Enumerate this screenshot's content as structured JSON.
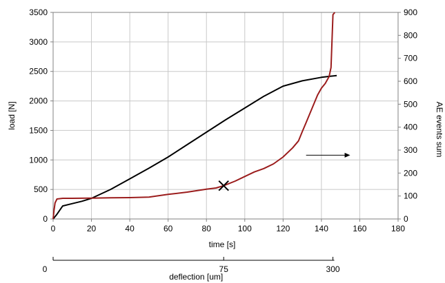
{
  "chart_data": {
    "type": "line",
    "title": "",
    "xlabel": "time  [s]",
    "ylabel_left": "load [N]",
    "ylabel_right": "AE events sum",
    "xlim": [
      0,
      180
    ],
    "ylim_left": [
      0,
      3500
    ],
    "ylim_right": [
      0,
      900
    ],
    "x_ticks": [
      "0",
      "20",
      "40",
      "60",
      "80",
      "100",
      "120",
      "140",
      "160",
      "180"
    ],
    "y_ticks_left": [
      "0",
      "500",
      "1000",
      "1500",
      "2000",
      "2500",
      "3000",
      "3500"
    ],
    "y_ticks_right": [
      "0",
      "100",
      "200",
      "300",
      "400",
      "500",
      "600",
      "700",
      "800",
      "900"
    ],
    "grid": true,
    "series": [
      {
        "axis": "left",
        "color": "#000000",
        "x": [
          0,
          2,
          5,
          10,
          15,
          20,
          30,
          40,
          50,
          60,
          70,
          80,
          90,
          100,
          110,
          120,
          130,
          140,
          145,
          148
        ],
        "y": [
          0,
          80,
          220,
          260,
          300,
          350,
          500,
          680,
          860,
          1050,
          1260,
          1470,
          1680,
          1880,
          2080,
          2250,
          2340,
          2400,
          2420,
          2430
        ]
      },
      {
        "axis": "right",
        "color": "#9b1c1c",
        "x": [
          0,
          0.5,
          1,
          2,
          5,
          10,
          20,
          30,
          40,
          50,
          60,
          70,
          80,
          85,
          89,
          95,
          100,
          105,
          110,
          115,
          120,
          125,
          128,
          130,
          132,
          134,
          136,
          138,
          140,
          142,
          143,
          144,
          145,
          146,
          147
        ],
        "y": [
          0,
          40,
          70,
          87,
          90,
          90,
          91,
          92,
          93,
          95,
          107,
          117,
          130,
          135,
          145,
          165,
          185,
          205,
          220,
          240,
          270,
          310,
          340,
          380,
          420,
          460,
          500,
          540,
          570,
          590,
          605,
          620,
          660,
          890,
          900
        ]
      }
    ],
    "annotations": [
      {
        "type": "cross",
        "x": 89,
        "y_right": 145
      },
      {
        "type": "arrow",
        "direction": "right",
        "x_from": 132,
        "x_to": 155,
        "y_right": 278
      }
    ],
    "secondary_x_axis": {
      "label": "deflection [um]",
      "ticks": [
        {
          "label": "0",
          "time": 0
        },
        {
          "label": "75",
          "time": 89
        },
        {
          "label": "300",
          "time": 146
        }
      ]
    }
  }
}
